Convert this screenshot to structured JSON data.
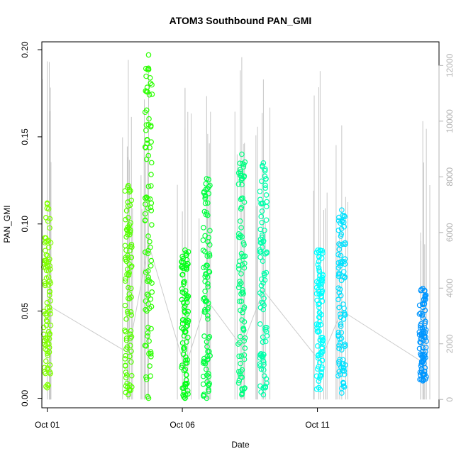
{
  "chart_data": {
    "type": "scatter",
    "title": "ATOM3 Southbound PAN_GMI",
    "xlabel": "Date",
    "ylabel": "PAN_GMI",
    "xlim": [
      -0.2,
      14.5
    ],
    "ylim": [
      -0.0055,
      0.2045
    ],
    "y2lim": [
      -300,
      12850
    ],
    "xticks": [
      {
        "value": 0,
        "label": "Oct 01"
      },
      {
        "value": 5,
        "label": "Oct 06"
      },
      {
        "value": 10,
        "label": "Oct 11"
      }
    ],
    "yticks": [
      {
        "value": 0.0,
        "label": "0.00"
      },
      {
        "value": 0.05,
        "label": "0.05"
      },
      {
        "value": 0.1,
        "label": "0.10"
      },
      {
        "value": 0.15,
        "label": "0.15"
      },
      {
        "value": 0.2,
        "label": "0.20"
      }
    ],
    "y2ticks": [
      {
        "value": 0,
        "label": "0"
      },
      {
        "value": 2000,
        "label": "2000"
      },
      {
        "value": 4000,
        "label": "4000"
      },
      {
        "value": 6000,
        "label": "6000"
      },
      {
        "value": 8000,
        "label": "8000"
      },
      {
        "value": 10000,
        "label": "10000"
      },
      {
        "value": 12000,
        "label": "12000"
      }
    ],
    "series": [
      {
        "x": 0.0,
        "ymin": 0.006,
        "ymax": 0.112,
        "color": "#80ff00",
        "y2max": 12150
      },
      {
        "x": 3.0,
        "ymin": 0.002,
        "ymax": 0.122,
        "color": "#55ff00",
        "y2max": 12200
      },
      {
        "x": 3.75,
        "ymin": 0.0,
        "ymax": 0.197,
        "color": "#2bff00",
        "y2max": 12000
      },
      {
        "x": 5.1,
        "ymin": 0.0,
        "ymax": 0.085,
        "color": "#00ff15",
        "y2max": 11200
      },
      {
        "x": 5.9,
        "ymin": 0.0,
        "ymax": 0.126,
        "color": "#00ff40",
        "y2max": 10900
      },
      {
        "x": 7.2,
        "ymin": 0.002,
        "ymax": 0.14,
        "color": "#00ff80",
        "y2max": 12300
      },
      {
        "x": 8.0,
        "ymin": 0.002,
        "ymax": 0.135,
        "color": "#00ffaa",
        "y2max": 11500
      },
      {
        "x": 10.1,
        "ymin": 0.005,
        "ymax": 0.085,
        "color": "#00ffff",
        "y2max": 11800
      },
      {
        "x": 10.9,
        "ymin": 0.003,
        "ymax": 0.108,
        "color": "#00e1ff",
        "y2max": 9850
      },
      {
        "x": 13.9,
        "ymin": 0.01,
        "ymax": 0.063,
        "color": "#0096ff",
        "y2max": 10000
      }
    ]
  }
}
